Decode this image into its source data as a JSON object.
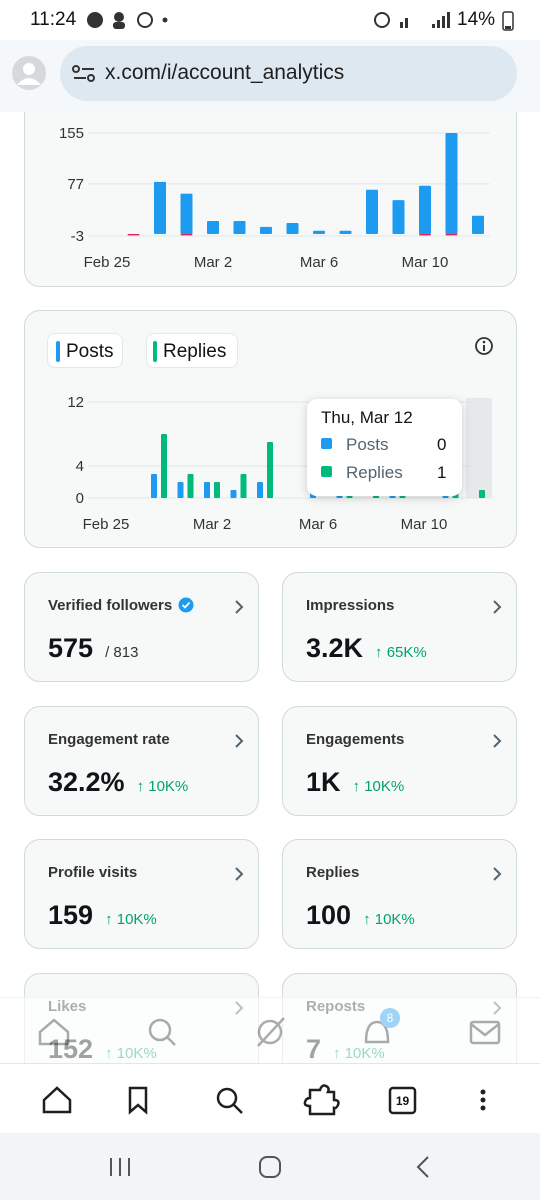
{
  "status_bar": {
    "time": "11:24",
    "battery": "14%"
  },
  "browser": {
    "url": "x.com/i/account_analytics",
    "tab_count": "19"
  },
  "charts": [
    {
      "type": "bar",
      "categories": [
        "Feb 25",
        null,
        null,
        null,
        "Mar 2",
        null,
        null,
        null,
        "Mar 6",
        null,
        null,
        null,
        "Mar 10",
        null,
        null
      ],
      "series": [
        {
          "color": "#1d9bf0",
          "values": [
            0,
            0,
            80,
            62,
            20,
            20,
            11,
            17,
            5,
            5,
            68,
            52,
            74,
            155,
            28
          ]
        },
        {
          "color": "#e0245e",
          "values": [
            0,
            -2,
            0,
            -2,
            0,
            0,
            0,
            0,
            0,
            0,
            0,
            0,
            -2,
            -2,
            0
          ]
        }
      ],
      "ylim": [
        -3,
        155
      ],
      "yticks": [
        -3,
        77,
        155
      ],
      "grid": true
    },
    {
      "type": "grouped_bar",
      "categories": [
        "Feb 25",
        null,
        null,
        null,
        "Mar 2",
        null,
        null,
        null,
        "Mar 6",
        null,
        null,
        null,
        "Mar 10",
        null,
        null
      ],
      "series": [
        {
          "name": "Posts",
          "color": "#1d9bf0",
          "values": [
            0,
            0,
            3,
            2,
            2,
            1,
            2,
            0,
            1,
            1,
            0,
            1,
            0,
            1,
            0
          ]
        },
        {
          "name": "Replies",
          "color": "#00ba7c",
          "values": [
            0,
            0,
            8,
            3,
            2,
            3,
            7,
            0,
            0,
            1,
            1,
            1,
            0,
            1,
            1
          ]
        }
      ],
      "ylim": [
        0,
        12
      ],
      "yticks": [
        0,
        4,
        12
      ],
      "grid": true,
      "tooltip": {
        "title": "Thu, Mar 12",
        "rows": [
          {
            "name": "Posts",
            "value": 0
          },
          {
            "name": "Replies",
            "value": 1
          }
        ]
      }
    }
  ],
  "cards": [
    {
      "label": "Verified followers",
      "value": "575",
      "suffix": "/ 813",
      "verified": true
    },
    {
      "label": "Impressions",
      "value": "3.2K",
      "change": "65K%"
    },
    {
      "label": "Engagement rate",
      "value": "32.2%",
      "change": "10K%"
    },
    {
      "label": "Engagements",
      "value": "1K",
      "change": "10K%"
    },
    {
      "label": "Profile visits",
      "value": "159",
      "change": "10K%"
    },
    {
      "label": "Replies",
      "value": "100",
      "change": "10K%"
    },
    {
      "label": "Likes",
      "value": "152",
      "change": "10K%"
    },
    {
      "label": "Reposts",
      "value": "7",
      "change": "10K%"
    }
  ],
  "nav": {
    "notifications_badge": "8"
  }
}
